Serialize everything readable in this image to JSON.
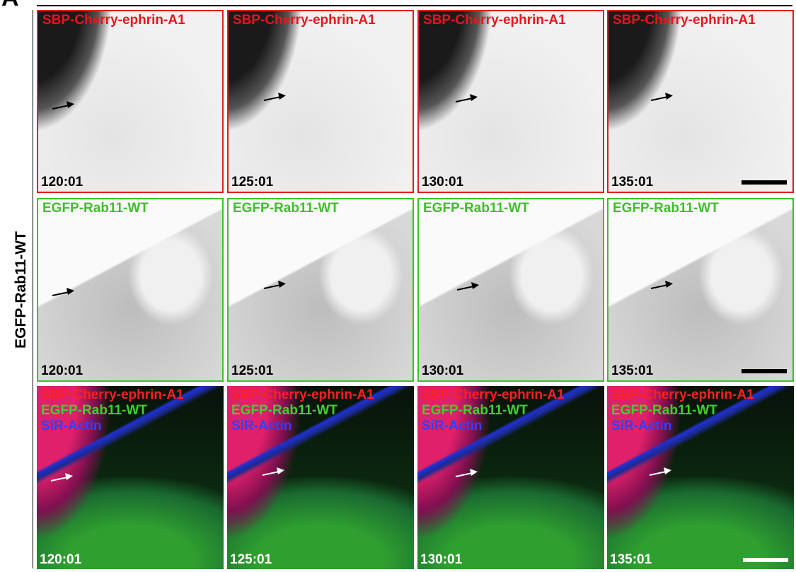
{
  "figure": {
    "panel_letter": "A",
    "row_label": "EGFP-Rab11-WT",
    "rows": [
      {
        "labels": [
          "SBP-Cherry-ephrin-A1"
        ],
        "times": [
          "120:01",
          "125:01",
          "130:01",
          "135:01"
        ]
      },
      {
        "labels": [
          "EGFP-Rab11-WT"
        ],
        "times": [
          "120:01",
          "125:01",
          "130:01",
          "135:01"
        ]
      },
      {
        "labels": [
          "SBP-Cherry-ephrin-A1",
          "EGFP-Rab11-WT",
          "SiR-Actin"
        ],
        "times": [
          "120:01",
          "125:01",
          "130:01",
          "135:01"
        ]
      }
    ]
  }
}
